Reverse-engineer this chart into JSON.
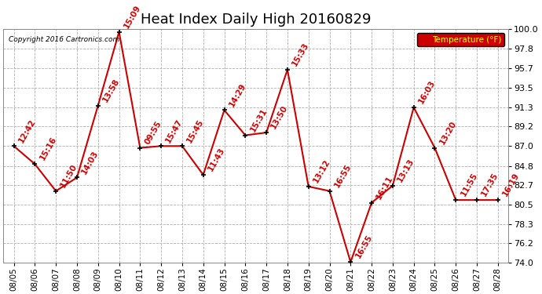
{
  "title": "Heat Index Daily High 20160829",
  "copyright": "Copyright 2016 Cartronics.com",
  "legend_label": "Temperature (°F)",
  "dates": [
    "08/05",
    "08/06",
    "08/07",
    "08/08",
    "08/09",
    "08/10",
    "08/11",
    "08/12",
    "08/13",
    "08/14",
    "08/15",
    "08/16",
    "08/17",
    "08/18",
    "08/19",
    "08/20",
    "08/21",
    "08/22",
    "08/23",
    "08/24",
    "08/25",
    "08/26",
    "08/27",
    "08/28"
  ],
  "values": [
    87.0,
    85.0,
    82.0,
    83.5,
    91.5,
    99.7,
    86.8,
    87.0,
    87.0,
    83.8,
    91.0,
    88.2,
    88.5,
    95.5,
    82.5,
    82.0,
    74.1,
    80.7,
    82.6,
    91.3,
    86.8,
    81.0,
    81.0,
    81.0
  ],
  "labels": [
    "12:42",
    "15:16",
    "11:50",
    "14:03",
    "13:58",
    "15:09",
    "09:55",
    "15:47",
    "15:45",
    "11:43",
    "14:29",
    "15:31",
    "13:50",
    "15:33",
    "13:12",
    "16:55",
    "16:55",
    "16:11",
    "13:13",
    "16:03",
    "13:20",
    "11:55",
    "17:35",
    "16:19"
  ],
  "ylim_min": 74.0,
  "ylim_max": 100.0,
  "yticks": [
    74.0,
    76.2,
    78.3,
    80.5,
    82.7,
    84.8,
    87.0,
    89.2,
    91.3,
    93.5,
    95.7,
    97.8,
    100.0
  ],
  "line_color": "#cc0000",
  "marker_color": "#000000",
  "bg_color": "#ffffff",
  "grid_color": "#b0b0b0",
  "title_fontsize": 13,
  "label_fontsize": 7.5,
  "legend_bg": "#cc0000",
  "legend_text_color": "#ffff00"
}
